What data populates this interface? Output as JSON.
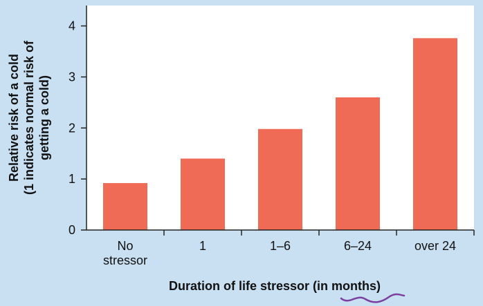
{
  "chart_data": {
    "type": "bar",
    "categories": [
      [
        "No",
        "stressor"
      ],
      [
        "1"
      ],
      [
        "1–6"
      ],
      [
        "6–24"
      ],
      [
        "over 24"
      ]
    ],
    "values": [
      0.92,
      1.4,
      1.98,
      2.6,
      3.76
    ],
    "ylim": [
      0,
      4.4
    ],
    "yticks": [
      "0",
      "1",
      "2",
      "3",
      "4"
    ],
    "xlabel": "Duration of life stressor (in months)",
    "ylabel_lines": [
      "Relative risk of a cold",
      "(1 indicates normal risk of",
      "getting a cold)"
    ],
    "grid": false,
    "colors": {
      "bar": "#ef6b55",
      "plot_bg": "#ffffff",
      "page_bg": "#c9dff2",
      "axis": "#222222",
      "underline": "#7a3fa0"
    }
  }
}
